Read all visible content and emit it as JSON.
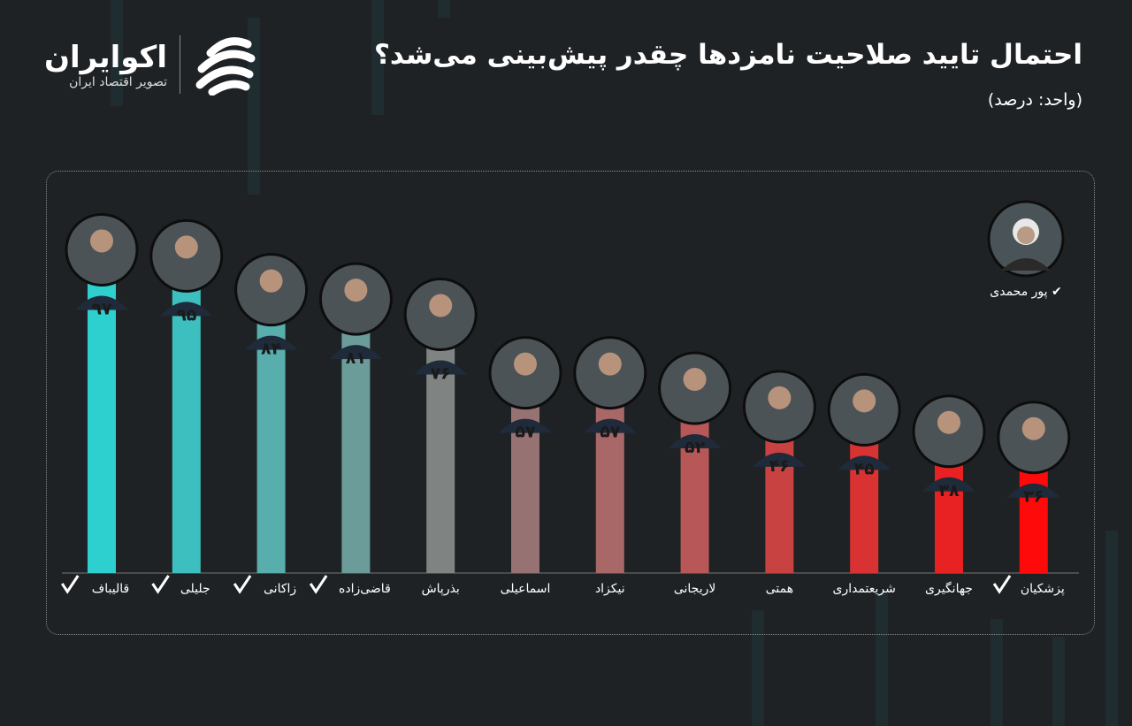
{
  "header": {
    "title": "احتمال تایید صلاحیت نامزدها چقدر پیش‌بینی می‌شد؟",
    "subtitle": "(واحد: درصد)"
  },
  "brand": {
    "name": "اکوایران",
    "tagline": "تصویر اقتصاد ایران"
  },
  "extra_candidate": {
    "name": "پور محمدی",
    "approved": true
  },
  "chart_data": {
    "type": "bar",
    "title": "احتمال تایید صلاحیت نامزدها چقدر پیش‌بینی می‌شد؟",
    "ylabel": "(واحد: درصد)",
    "ylim": [
      0,
      100
    ],
    "grid": false,
    "categories": [
      "قالیباف",
      "جلیلی",
      "زاکانی",
      "قاضی‌زاده",
      "بذرپاش",
      "اسماعیلی",
      "نیکزاد",
      "لاریجانی",
      "همتی",
      "شریعتمداری",
      "جهانگیری",
      "پزشکیان"
    ],
    "values": [
      97,
      95,
      84,
      81,
      76,
      57,
      57,
      52,
      46,
      45,
      38,
      36
    ],
    "value_labels": [
      "۹۷",
      "۹۵",
      "۸۴",
      "۸۱",
      "۷۶",
      "۵۷",
      "۵۷",
      "۵۲",
      "۴۶",
      "۴۵",
      "۳۸",
      "۳۶"
    ],
    "approved": [
      true,
      true,
      true,
      true,
      false,
      false,
      false,
      false,
      false,
      false,
      false,
      true
    ],
    "colors": [
      "#2ecfcf",
      "#3dbfbf",
      "#57aeac",
      "#6c9c9a",
      "#7f8483",
      "#977272",
      "#a86868",
      "#b75757",
      "#c84242",
      "#d93232",
      "#e82222",
      "#ff0a0a"
    ]
  }
}
